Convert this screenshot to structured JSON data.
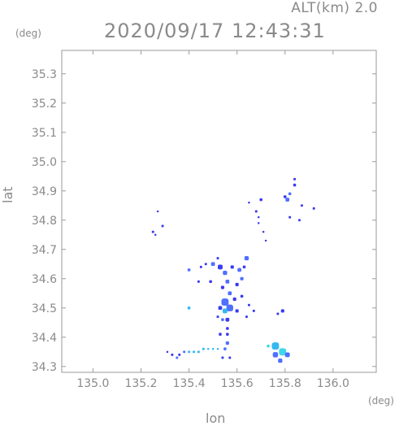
{
  "header": {
    "alt_label": "ALT(km) 2.0",
    "timestamp": "2020/09/17 12:43:31"
  },
  "axes": {
    "x_unit": "(deg)",
    "y_unit": "(deg)",
    "x_label": "lon",
    "y_label": "lat"
  },
  "chart_data": {
    "type": "heatmap",
    "xlabel": "lon",
    "ylabel": "lat",
    "xlim": [
      134.87,
      136.18
    ],
    "ylim": [
      34.28,
      35.38
    ],
    "x_ticks": [
      "135.0",
      "135.2",
      "135.4",
      "135.6",
      "135.8",
      "136.0"
    ],
    "y_ticks": [
      "34.3",
      "34.4",
      "34.5",
      "34.6",
      "34.7",
      "34.8",
      "34.9",
      "35.0",
      "35.1",
      "35.2",
      "35.3"
    ],
    "x_tick_values": [
      135.0,
      135.2,
      135.4,
      135.6,
      135.8,
      136.0
    ],
    "y_tick_values": [
      34.3,
      34.4,
      34.5,
      34.6,
      34.7,
      34.8,
      34.9,
      35.0,
      35.1,
      35.2,
      35.3
    ],
    "grid": false,
    "colors": {
      "low": "#3b3bf0",
      "mid": "#4f6fff",
      "high": "#35b8f0",
      "peak": "#40d8e8"
    },
    "cells": [
      {
        "lon": 135.84,
        "lat": 34.94,
        "size": 0.01,
        "level": "low"
      },
      {
        "lon": 135.84,
        "lat": 34.92,
        "size": 0.012,
        "level": "low"
      },
      {
        "lon": 135.82,
        "lat": 34.89,
        "size": 0.012,
        "level": "mid"
      },
      {
        "lon": 135.81,
        "lat": 34.87,
        "size": 0.016,
        "level": "mid"
      },
      {
        "lon": 135.8,
        "lat": 34.88,
        "size": 0.012,
        "level": "low"
      },
      {
        "lon": 135.7,
        "lat": 34.87,
        "size": 0.012,
        "level": "low"
      },
      {
        "lon": 135.65,
        "lat": 34.86,
        "size": 0.008,
        "level": "low"
      },
      {
        "lon": 135.92,
        "lat": 34.84,
        "size": 0.01,
        "level": "low"
      },
      {
        "lon": 135.87,
        "lat": 34.85,
        "size": 0.01,
        "level": "low"
      },
      {
        "lon": 135.82,
        "lat": 34.81,
        "size": 0.01,
        "level": "low"
      },
      {
        "lon": 135.86,
        "lat": 34.8,
        "size": 0.01,
        "level": "low"
      },
      {
        "lon": 135.68,
        "lat": 34.83,
        "size": 0.01,
        "level": "low"
      },
      {
        "lon": 135.69,
        "lat": 34.81,
        "size": 0.008,
        "level": "low"
      },
      {
        "lon": 135.69,
        "lat": 34.79,
        "size": 0.008,
        "level": "low"
      },
      {
        "lon": 135.71,
        "lat": 34.76,
        "size": 0.008,
        "level": "low"
      },
      {
        "lon": 135.72,
        "lat": 34.73,
        "size": 0.008,
        "level": "low"
      },
      {
        "lon": 135.27,
        "lat": 34.83,
        "size": 0.008,
        "level": "low"
      },
      {
        "lon": 135.29,
        "lat": 34.78,
        "size": 0.01,
        "level": "low"
      },
      {
        "lon": 135.25,
        "lat": 34.76,
        "size": 0.01,
        "level": "low"
      },
      {
        "lon": 135.26,
        "lat": 34.75,
        "size": 0.008,
        "level": "low"
      },
      {
        "lon": 135.52,
        "lat": 34.67,
        "size": 0.01,
        "level": "low"
      },
      {
        "lon": 135.45,
        "lat": 34.64,
        "size": 0.01,
        "level": "low"
      },
      {
        "lon": 135.47,
        "lat": 34.65,
        "size": 0.01,
        "level": "low"
      },
      {
        "lon": 135.4,
        "lat": 34.63,
        "size": 0.012,
        "level": "mid"
      },
      {
        "lon": 135.5,
        "lat": 34.65,
        "size": 0.016,
        "level": "mid"
      },
      {
        "lon": 135.53,
        "lat": 34.64,
        "size": 0.02,
        "level": "low"
      },
      {
        "lon": 135.55,
        "lat": 34.62,
        "size": 0.018,
        "level": "mid"
      },
      {
        "lon": 135.58,
        "lat": 34.64,
        "size": 0.014,
        "level": "low"
      },
      {
        "lon": 135.61,
        "lat": 34.63,
        "size": 0.016,
        "level": "mid"
      },
      {
        "lon": 135.63,
        "lat": 34.64,
        "size": 0.012,
        "level": "low"
      },
      {
        "lon": 135.64,
        "lat": 34.67,
        "size": 0.018,
        "level": "mid"
      },
      {
        "lon": 135.62,
        "lat": 34.6,
        "size": 0.014,
        "level": "mid"
      },
      {
        "lon": 135.6,
        "lat": 34.58,
        "size": 0.014,
        "level": "low"
      },
      {
        "lon": 135.56,
        "lat": 34.59,
        "size": 0.016,
        "level": "mid"
      },
      {
        "lon": 135.54,
        "lat": 34.57,
        "size": 0.014,
        "level": "low"
      },
      {
        "lon": 135.49,
        "lat": 34.59,
        "size": 0.012,
        "level": "low"
      },
      {
        "lon": 135.44,
        "lat": 34.59,
        "size": 0.01,
        "level": "low"
      },
      {
        "lon": 135.57,
        "lat": 34.55,
        "size": 0.016,
        "level": "mid"
      },
      {
        "lon": 135.59,
        "lat": 34.53,
        "size": 0.014,
        "level": "low"
      },
      {
        "lon": 135.62,
        "lat": 34.54,
        "size": 0.012,
        "level": "low"
      },
      {
        "lon": 135.55,
        "lat": 34.52,
        "size": 0.03,
        "level": "mid"
      },
      {
        "lon": 135.57,
        "lat": 34.5,
        "size": 0.028,
        "level": "mid"
      },
      {
        "lon": 135.55,
        "lat": 34.49,
        "size": 0.02,
        "level": "high"
      },
      {
        "lon": 135.53,
        "lat": 34.5,
        "size": 0.016,
        "level": "low"
      },
      {
        "lon": 135.6,
        "lat": 34.49,
        "size": 0.014,
        "level": "low"
      },
      {
        "lon": 135.65,
        "lat": 34.51,
        "size": 0.01,
        "level": "low"
      },
      {
        "lon": 135.67,
        "lat": 34.49,
        "size": 0.01,
        "level": "low"
      },
      {
        "lon": 135.64,
        "lat": 34.47,
        "size": 0.01,
        "level": "low"
      },
      {
        "lon": 135.56,
        "lat": 34.46,
        "size": 0.016,
        "level": "low"
      },
      {
        "lon": 135.54,
        "lat": 34.46,
        "size": 0.012,
        "level": "mid"
      },
      {
        "lon": 135.52,
        "lat": 34.47,
        "size": 0.01,
        "level": "low"
      },
      {
        "lon": 135.4,
        "lat": 34.5,
        "size": 0.012,
        "level": "high"
      },
      {
        "lon": 135.79,
        "lat": 34.49,
        "size": 0.014,
        "level": "low"
      },
      {
        "lon": 135.77,
        "lat": 34.48,
        "size": 0.01,
        "level": "low"
      },
      {
        "lon": 135.56,
        "lat": 34.43,
        "size": 0.012,
        "level": "low"
      },
      {
        "lon": 135.53,
        "lat": 34.41,
        "size": 0.012,
        "level": "low"
      },
      {
        "lon": 135.56,
        "lat": 34.41,
        "size": 0.012,
        "level": "low"
      },
      {
        "lon": 135.56,
        "lat": 34.38,
        "size": 0.014,
        "level": "mid"
      },
      {
        "lon": 135.55,
        "lat": 34.36,
        "size": 0.012,
        "level": "mid"
      },
      {
        "lon": 135.54,
        "lat": 34.33,
        "size": 0.01,
        "level": "low"
      },
      {
        "lon": 135.57,
        "lat": 34.33,
        "size": 0.01,
        "level": "low"
      },
      {
        "lon": 135.76,
        "lat": 34.37,
        "size": 0.03,
        "level": "high"
      },
      {
        "lon": 135.79,
        "lat": 34.35,
        "size": 0.03,
        "level": "peak"
      },
      {
        "lon": 135.76,
        "lat": 34.34,
        "size": 0.022,
        "level": "mid"
      },
      {
        "lon": 135.81,
        "lat": 34.34,
        "size": 0.02,
        "level": "mid"
      },
      {
        "lon": 135.78,
        "lat": 34.32,
        "size": 0.018,
        "level": "mid"
      },
      {
        "lon": 135.73,
        "lat": 34.37,
        "size": 0.012,
        "level": "peak"
      },
      {
        "lon": 135.4,
        "lat": 34.35,
        "size": 0.01,
        "level": "high"
      },
      {
        "lon": 135.42,
        "lat": 34.35,
        "size": 0.01,
        "level": "high"
      },
      {
        "lon": 135.44,
        "lat": 34.35,
        "size": 0.01,
        "level": "high"
      },
      {
        "lon": 135.46,
        "lat": 34.36,
        "size": 0.01,
        "level": "high"
      },
      {
        "lon": 135.48,
        "lat": 34.36,
        "size": 0.008,
        "level": "high"
      },
      {
        "lon": 135.5,
        "lat": 34.36,
        "size": 0.008,
        "level": "high"
      },
      {
        "lon": 135.52,
        "lat": 34.36,
        "size": 0.008,
        "level": "high"
      },
      {
        "lon": 135.38,
        "lat": 34.35,
        "size": 0.01,
        "level": "mid"
      },
      {
        "lon": 135.36,
        "lat": 34.34,
        "size": 0.01,
        "level": "low"
      },
      {
        "lon": 135.33,
        "lat": 34.34,
        "size": 0.01,
        "level": "low"
      },
      {
        "lon": 135.35,
        "lat": 34.33,
        "size": 0.01,
        "level": "mid"
      },
      {
        "lon": 135.31,
        "lat": 34.35,
        "size": 0.008,
        "level": "low"
      }
    ]
  }
}
